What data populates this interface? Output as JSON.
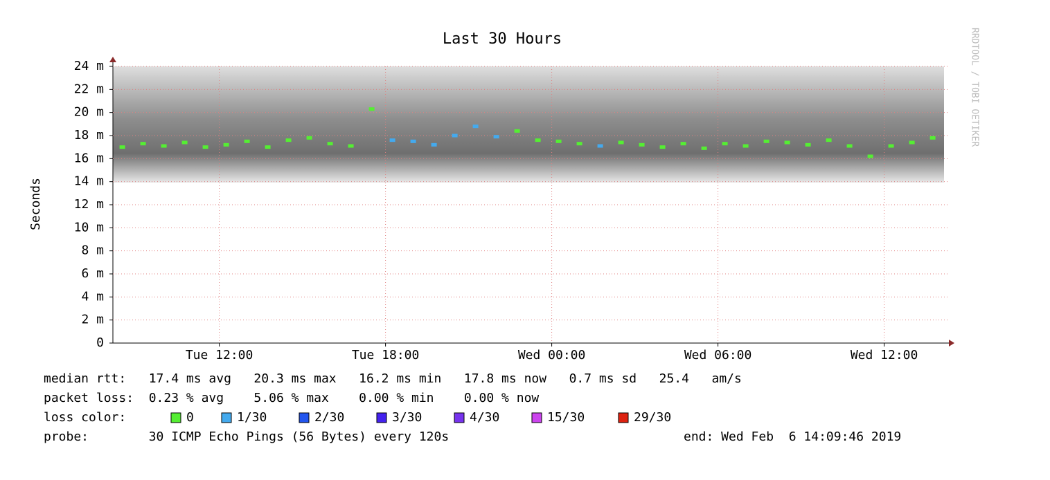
{
  "chart_data": {
    "type": "smokeping",
    "title": "Last 30 Hours",
    "y_label": "Seconds",
    "watermark": "RRDTOOL / TOBI OETIKER",
    "xlim": [
      8.16,
      38.16
    ],
    "xticks": [
      {
        "value": 12,
        "label": "Tue 12:00"
      },
      {
        "value": 18,
        "label": "Tue 18:00"
      },
      {
        "value": 24,
        "label": "Wed 00:00"
      },
      {
        "value": 30,
        "label": "Wed 06:00"
      },
      {
        "value": 36,
        "label": "Wed 12:00"
      }
    ],
    "ylim": [
      0,
      0.024
    ],
    "yticks": [
      0,
      {
        "value": 0.002,
        "label": "2 m"
      },
      {
        "value": 0.004,
        "label": "4 m"
      },
      {
        "value": 0.006,
        "label": "6 m"
      },
      {
        "value": 0.008,
        "label": "8 m"
      },
      {
        "value": 0.01,
        "label": "10 m"
      },
      {
        "value": 0.012,
        "label": "12 m"
      },
      {
        "value": 0.014,
        "label": "14 m"
      },
      {
        "value": 0.016,
        "label": "16 m"
      },
      {
        "value": 0.018,
        "label": "18 m"
      },
      {
        "value": 0.02,
        "label": "20 m"
      },
      {
        "value": 0.022,
        "label": "22 m"
      },
      {
        "value": 0.024,
        "label": "24 m"
      }
    ],
    "grid": true,
    "x": [
      8.5,
      9.25,
      10,
      10.75,
      11.5,
      12.25,
      13,
      13.75,
      14.5,
      15.25,
      16,
      16.75,
      17.5,
      18.25,
      19,
      19.75,
      20.5,
      21.25,
      22,
      22.75,
      23.5,
      24.25,
      25,
      25.75,
      26.5,
      27.25,
      28,
      28.75,
      29.5,
      30.25,
      31,
      31.75,
      32.5,
      33.25,
      34,
      34.75,
      35.5,
      36.25,
      37,
      37.75
    ],
    "legend_title": "loss color:",
    "series": [
      {
        "name": "0",
        "color": "#55ee33",
        "values": [
          0.017,
          0.0173,
          0.0171,
          0.0174,
          0.017,
          0.0172,
          0.0175,
          0.017,
          0.0176,
          0.0178,
          0.0173,
          0.0171,
          0.0203,
          null,
          null,
          null,
          null,
          null,
          null,
          0.0184,
          0.0176,
          0.0175,
          0.0173,
          null,
          0.0174,
          0.0172,
          0.017,
          0.0173,
          0.0169,
          0.0173,
          0.0171,
          0.0175,
          0.0174,
          0.0172,
          0.0176,
          0.0171,
          0.0162,
          0.0171,
          0.0174,
          0.0178
        ]
      },
      {
        "name": "1/30",
        "color": "#44aaee",
        "values": [
          null,
          null,
          null,
          null,
          null,
          null,
          null,
          null,
          null,
          null,
          null,
          null,
          null,
          0.0176,
          0.0175,
          0.0172,
          0.018,
          0.0188,
          0.0179,
          null,
          null,
          null,
          null,
          0.0171,
          null,
          null,
          null,
          null,
          null,
          null,
          null,
          null,
          null,
          null,
          null,
          null,
          null,
          null,
          null,
          null
        ]
      },
      {
        "name": "2/30",
        "color": "#2255ee",
        "values": [
          null,
          null,
          null,
          null,
          null,
          null,
          null,
          null,
          null,
          null,
          null,
          null,
          null,
          null,
          null,
          null,
          null,
          null,
          null,
          null,
          null,
          null,
          null,
          null,
          null,
          null,
          null,
          null,
          null,
          null,
          null,
          null,
          null,
          null,
          null,
          null,
          null,
          null,
          null,
          null
        ]
      },
      {
        "name": "3/30",
        "color": "#4422ee",
        "values": [
          null,
          null,
          null,
          null,
          null,
          null,
          null,
          null,
          null,
          null,
          null,
          null,
          null,
          null,
          null,
          null,
          null,
          null,
          null,
          null,
          null,
          null,
          null,
          null,
          null,
          null,
          null,
          null,
          null,
          null,
          null,
          null,
          null,
          null,
          null,
          null,
          null,
          null,
          null,
          null
        ]
      },
      {
        "name": "4/30",
        "color": "#7733ee",
        "values": [
          null,
          null,
          null,
          null,
          null,
          null,
          null,
          null,
          null,
          null,
          null,
          null,
          null,
          null,
          null,
          null,
          null,
          null,
          null,
          null,
          null,
          null,
          null,
          null,
          null,
          null,
          null,
          null,
          null,
          null,
          null,
          null,
          null,
          null,
          null,
          null,
          null,
          null,
          null,
          null
        ]
      },
      {
        "name": "15/30",
        "color": "#cc44ee",
        "values": [
          null,
          null,
          null,
          null,
          null,
          null,
          null,
          null,
          null,
          null,
          null,
          null,
          null,
          null,
          null,
          null,
          null,
          null,
          null,
          null,
          null,
          null,
          null,
          null,
          null,
          null,
          null,
          null,
          null,
          null,
          null,
          null,
          null,
          null,
          null,
          null,
          null,
          null,
          null,
          null
        ]
      },
      {
        "name": "29/30",
        "color": "#dd2211",
        "values": [
          null,
          null,
          null,
          null,
          null,
          null,
          null,
          null,
          null,
          null,
          null,
          null,
          null,
          null,
          null,
          null,
          null,
          null,
          null,
          null,
          null,
          null,
          null,
          null,
          null,
          null,
          null,
          null,
          null,
          null,
          null,
          null,
          null,
          null,
          null,
          null,
          null,
          null,
          null,
          null
        ]
      }
    ],
    "stats": [
      "median rtt:   17.4 ms avg   20.3 ms max   16.2 ms min   17.8 ms now   0.7 ms sd   25.4   am/s",
      "packet loss:  0.23 % avg    5.06 % max    0.00 % min    0.00 % now"
    ],
    "probe": "probe:        30 ICMP Echo Pings (56 Bytes) every 120s",
    "end": "end: Wed Feb  6 14:09:46 2019"
  }
}
